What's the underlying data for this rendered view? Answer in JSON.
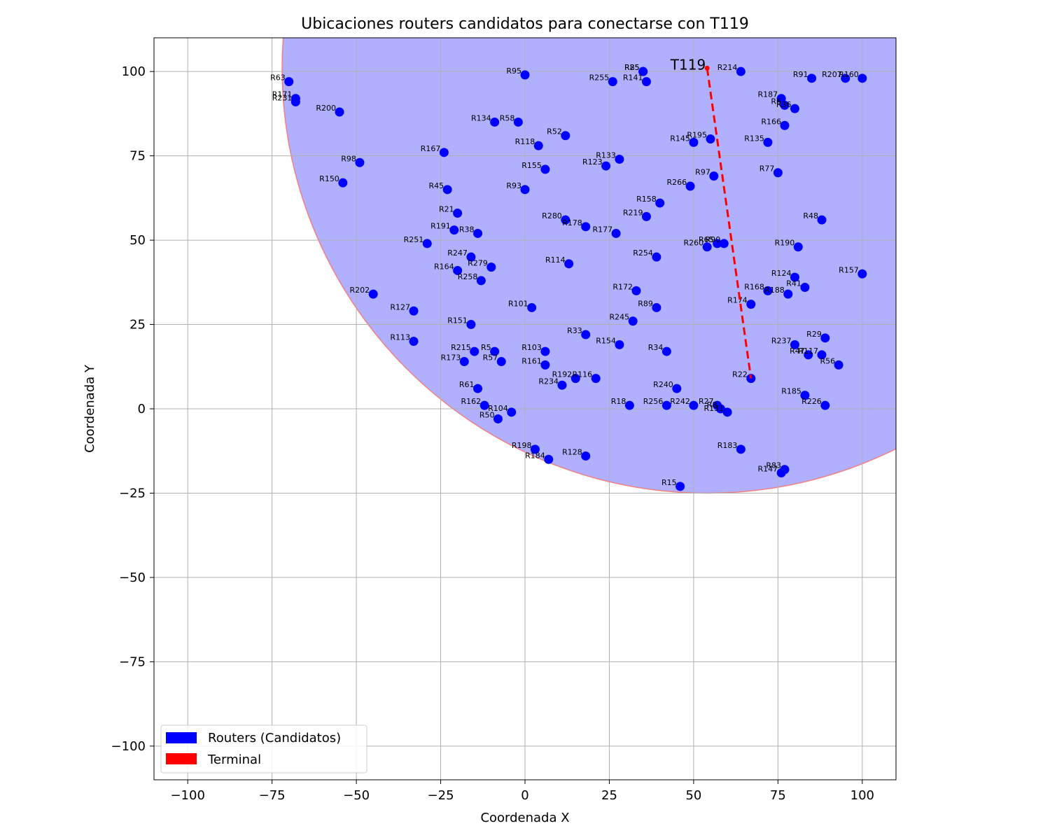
{
  "chart_data": {
    "type": "scatter",
    "title": "Ubicaciones routers candidatos para conectarse con T119",
    "xlabel": "Coordenada X",
    "ylabel": "Coordenada Y",
    "xlim": [
      -110,
      110
    ],
    "ylim": [
      -110,
      110
    ],
    "xticks": [
      -100,
      -75,
      -50,
      -25,
      0,
      25,
      50,
      75,
      100
    ],
    "yticks": [
      -100,
      -75,
      -50,
      -25,
      0,
      25,
      50,
      75,
      100
    ],
    "xtick_labels": [
      "−100",
      "−75",
      "−50",
      "−25",
      "0",
      "25",
      "50",
      "75",
      "100"
    ],
    "ytick_labels": [
      "−100",
      "−75",
      "−50",
      "−25",
      "0",
      "25",
      "50",
      "75",
      "100"
    ],
    "grid": true,
    "legend_position": "bottom-left",
    "legend": [
      {
        "label": "Routers (Candidatos)",
        "color": "#0000ff"
      },
      {
        "label": "Terminal",
        "color": "#ff0000"
      }
    ],
    "colors": {
      "router": "#0000ff",
      "terminal": "#ff0000",
      "coverage_fill": "#b0b0ff",
      "coverage_edge": "#f08080",
      "grid": "#b0b0b0"
    },
    "coverage_circle": {
      "center": [
        54,
        101
      ],
      "radius": 126
    },
    "terminal": {
      "name": "T119",
      "x": 54,
      "y": 101
    },
    "connection": {
      "from": "T119",
      "to": "R22",
      "x": [
        54,
        67
      ],
      "y": [
        101,
        9
      ]
    },
    "routers": [
      {
        "name": "R63",
        "x": -70,
        "y": 97
      },
      {
        "name": "R171",
        "x": -68,
        "y": 92
      },
      {
        "name": "R231",
        "x": -68,
        "y": 91
      },
      {
        "name": "R200",
        "x": -55,
        "y": 88
      },
      {
        "name": "R98",
        "x": -49,
        "y": 73
      },
      {
        "name": "R150",
        "x": -54,
        "y": 67
      },
      {
        "name": "R95",
        "x": 0,
        "y": 99
      },
      {
        "name": "R134",
        "x": -9,
        "y": 85
      },
      {
        "name": "R58",
        "x": -2,
        "y": 85
      },
      {
        "name": "R52",
        "x": 12,
        "y": 81
      },
      {
        "name": "R118",
        "x": 4,
        "y": 78
      },
      {
        "name": "R167",
        "x": -24,
        "y": 76
      },
      {
        "name": "R155",
        "x": 6,
        "y": 71
      },
      {
        "name": "R45",
        "x": -23,
        "y": 65
      },
      {
        "name": "R93",
        "x": 0,
        "y": 65
      },
      {
        "name": "R21",
        "x": -20,
        "y": 58
      },
      {
        "name": "R191",
        "x": -21,
        "y": 53
      },
      {
        "name": "R38",
        "x": -14,
        "y": 52
      },
      {
        "name": "R251",
        "x": -29,
        "y": 49
      },
      {
        "name": "R247",
        "x": -16,
        "y": 45
      },
      {
        "name": "R164",
        "x": -20,
        "y": 41
      },
      {
        "name": "R279",
        "x": -10,
        "y": 42
      },
      {
        "name": "R258",
        "x": -13,
        "y": 38
      },
      {
        "name": "R202",
        "x": -45,
        "y": 34
      },
      {
        "name": "R127",
        "x": -33,
        "y": 29
      },
      {
        "name": "R113",
        "x": -33,
        "y": 20
      },
      {
        "name": "R151",
        "x": -16,
        "y": 25
      },
      {
        "name": "R215",
        "x": -15,
        "y": 17
      },
      {
        "name": "R5",
        "x": -9,
        "y": 17
      },
      {
        "name": "R57",
        "x": -7,
        "y": 14
      },
      {
        "name": "R173",
        "x": -18,
        "y": 14
      },
      {
        "name": "R61",
        "x": -14,
        "y": 6
      },
      {
        "name": "R162",
        "x": -12,
        "y": 1
      },
      {
        "name": "R104",
        "x": -4,
        "y": -1
      },
      {
        "name": "R50",
        "x": -8,
        "y": -3
      },
      {
        "name": "R198",
        "x": 3,
        "y": -12
      },
      {
        "name": "R184",
        "x": 7,
        "y": -15
      },
      {
        "name": "R128",
        "x": 18,
        "y": -14
      },
      {
        "name": "R15",
        "x": 46,
        "y": -23
      },
      {
        "name": "R101",
        "x": 2,
        "y": 30
      },
      {
        "name": "R114",
        "x": 13,
        "y": 43
      },
      {
        "name": "R280",
        "x": 12,
        "y": 56
      },
      {
        "name": "R178",
        "x": 18,
        "y": 54
      },
      {
        "name": "R177",
        "x": 27,
        "y": 52
      },
      {
        "name": "R103",
        "x": 6,
        "y": 17
      },
      {
        "name": "R161",
        "x": 6,
        "y": 13
      },
      {
        "name": "R192",
        "x": 15,
        "y": 9
      },
      {
        "name": "R116",
        "x": 21,
        "y": 9
      },
      {
        "name": "R234",
        "x": 11,
        "y": 7
      },
      {
        "name": "R33",
        "x": 18,
        "y": 22
      },
      {
        "name": "R154",
        "x": 28,
        "y": 19
      },
      {
        "name": "R245",
        "x": 32,
        "y": 26
      },
      {
        "name": "R34",
        "x": 42,
        "y": 17
      },
      {
        "name": "R89",
        "x": 39,
        "y": 30
      },
      {
        "name": "R172",
        "x": 33,
        "y": 35
      },
      {
        "name": "R254",
        "x": 39,
        "y": 45
      },
      {
        "name": "R219",
        "x": 36,
        "y": 57
      },
      {
        "name": "R158",
        "x": 40,
        "y": 61
      },
      {
        "name": "R123",
        "x": 24,
        "y": 72
      },
      {
        "name": "R133",
        "x": 28,
        "y": 74
      },
      {
        "name": "R255",
        "x": 26,
        "y": 97
      },
      {
        "name": "R85",
        "x": 35,
        "y": 100
      },
      {
        "name": "R25",
        "x": 35,
        "y": 100
      },
      {
        "name": "R141",
        "x": 36,
        "y": 97
      },
      {
        "name": "R214",
        "x": 64,
        "y": 100
      },
      {
        "name": "R145",
        "x": 50,
        "y": 79
      },
      {
        "name": "R195",
        "x": 55,
        "y": 80
      },
      {
        "name": "R97",
        "x": 56,
        "y": 69
      },
      {
        "name": "R266",
        "x": 49,
        "y": 66
      },
      {
        "name": "R260",
        "x": 54,
        "y": 48
      },
      {
        "name": "R65",
        "x": 57,
        "y": 49
      },
      {
        "name": "R90",
        "x": 59,
        "y": 49
      },
      {
        "name": "R174",
        "x": 67,
        "y": 31
      },
      {
        "name": "R22",
        "x": 67,
        "y": 9
      },
      {
        "name": "R240",
        "x": 45,
        "y": 6
      },
      {
        "name": "R18",
        "x": 31,
        "y": 1
      },
      {
        "name": "R256",
        "x": 42,
        "y": 1
      },
      {
        "name": "R242",
        "x": 50,
        "y": 1
      },
      {
        "name": "R27",
        "x": 57,
        "y": 1
      },
      {
        "name": "R8",
        "x": 58,
        "y": 0
      },
      {
        "name": "R131",
        "x": 60,
        "y": -1
      },
      {
        "name": "R183",
        "x": 64,
        "y": -12
      },
      {
        "name": "R83",
        "x": 77,
        "y": -18
      },
      {
        "name": "R147",
        "x": 76,
        "y": -19
      },
      {
        "name": "R91",
        "x": 85,
        "y": 98
      },
      {
        "name": "R207",
        "x": 95,
        "y": 98
      },
      {
        "name": "R160",
        "x": 100,
        "y": 98
      },
      {
        "name": "R187",
        "x": 76,
        "y": 92
      },
      {
        "name": "R6",
        "x": 77,
        "y": 90
      },
      {
        "name": "R36",
        "x": 80,
        "y": 89
      },
      {
        "name": "R166",
        "x": 77,
        "y": 84
      },
      {
        "name": "R135",
        "x": 72,
        "y": 79
      },
      {
        "name": "R77",
        "x": 75,
        "y": 70
      },
      {
        "name": "R48",
        "x": 88,
        "y": 56
      },
      {
        "name": "R190",
        "x": 81,
        "y": 48
      },
      {
        "name": "R157",
        "x": 100,
        "y": 40
      },
      {
        "name": "R124",
        "x": 80,
        "y": 39
      },
      {
        "name": "R41",
        "x": 83,
        "y": 36
      },
      {
        "name": "R168",
        "x": 72,
        "y": 35
      },
      {
        "name": "R188",
        "x": 78,
        "y": 34
      },
      {
        "name": "R29",
        "x": 89,
        "y": 21
      },
      {
        "name": "R237",
        "x": 80,
        "y": 19
      },
      {
        "name": "R47",
        "x": 84,
        "y": 16
      },
      {
        "name": "R117",
        "x": 88,
        "y": 16
      },
      {
        "name": "R56",
        "x": 93,
        "y": 13
      },
      {
        "name": "R185",
        "x": 83,
        "y": 4
      },
      {
        "name": "R226",
        "x": 89,
        "y": 1
      }
    ]
  }
}
